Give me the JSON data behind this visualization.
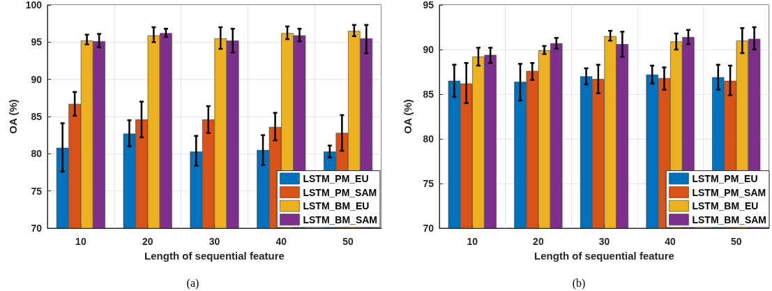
{
  "chart_data": [
    {
      "type": "bar",
      "categories": [
        "10",
        "20",
        "30",
        "40",
        "50"
      ],
      "xlabel": "Length of sequential feature",
      "ylabel": "OA (%)",
      "ylim": [
        70,
        100
      ],
      "yticks": [
        70,
        75,
        80,
        85,
        90,
        95,
        100
      ],
      "grid": true,
      "legend": "bottom right",
      "annotations": [
        "(a)"
      ],
      "series": [
        {
          "name": "LSTM_PM_EU",
          "color": "#0072bd",
          "values": [
            80.8,
            82.7,
            80.3,
            80.5,
            80.3
          ],
          "errors": [
            [
              77.6,
              84.1
            ],
            [
              81.0,
              84.5
            ],
            [
              78.4,
              82.4
            ],
            [
              78.5,
              82.5
            ],
            [
              79.5,
              81.1
            ]
          ]
        },
        {
          "name": "LSTM_PM_SAM",
          "color": "#d95319",
          "values": [
            86.7,
            84.6,
            84.6,
            83.6,
            82.8
          ],
          "errors": [
            [
              85.1,
              88.3
            ],
            [
              82.2,
              87.0
            ],
            [
              82.8,
              86.4
            ],
            [
              81.8,
              85.5
            ],
            [
              80.4,
              85.2
            ]
          ]
        },
        {
          "name": "LSTM_BM_EU",
          "color": "#edb120",
          "values": [
            95.2,
            95.9,
            95.5,
            96.2,
            96.5
          ],
          "errors": [
            [
              94.7,
              96.0
            ],
            [
              95.0,
              97.0
            ],
            [
              94.1,
              97.0
            ],
            [
              95.4,
              97.1
            ],
            [
              95.8,
              97.3
            ]
          ]
        },
        {
          "name": "LSTM_BM_SAM",
          "color": "#7e2f8e",
          "values": [
            95.1,
            96.2,
            95.2,
            95.9,
            95.5
          ],
          "errors": [
            [
              94.3,
              96.1
            ],
            [
              95.7,
              96.8
            ],
            [
              93.6,
              96.8
            ],
            [
              95.1,
              96.8
            ],
            [
              93.5,
              97.3
            ]
          ]
        }
      ]
    },
    {
      "type": "bar",
      "categories": [
        "10",
        "20",
        "30",
        "40",
        "50"
      ],
      "xlabel": "Length of sequential feature",
      "ylabel": "OA (%)",
      "ylim": [
        70,
        95
      ],
      "yticks": [
        70,
        75,
        80,
        85,
        90,
        95
      ],
      "grid": true,
      "legend": "bottom right",
      "annotations": [
        "(b)"
      ],
      "series": [
        {
          "name": "LSTM_PM_EU",
          "color": "#0072bd",
          "values": [
            86.5,
            86.4,
            87.0,
            87.2,
            86.9
          ],
          "errors": [
            [
              84.7,
              88.3
            ],
            [
              84.3,
              88.4
            ],
            [
              86.1,
              87.9
            ],
            [
              86.2,
              88.2
            ],
            [
              85.5,
              88.3
            ]
          ]
        },
        {
          "name": "LSTM_PM_SAM",
          "color": "#d95319",
          "values": [
            86.2,
            87.6,
            86.7,
            86.8,
            86.5
          ],
          "errors": [
            [
              84.0,
              88.5
            ],
            [
              86.6,
              88.5
            ],
            [
              85.1,
              88.3
            ],
            [
              85.5,
              88.0
            ],
            [
              84.9,
              88.2
            ]
          ]
        },
        {
          "name": "LSTM_BM_EU",
          "color": "#edb120",
          "values": [
            89.2,
            89.9,
            91.5,
            90.9,
            91.0
          ],
          "errors": [
            [
              88.2,
              90.2
            ],
            [
              89.5,
              90.4
            ],
            [
              91.0,
              92.1
            ],
            [
              90.0,
              91.8
            ],
            [
              89.6,
              92.4
            ]
          ]
        },
        {
          "name": "LSTM_BM_SAM",
          "color": "#7e2f8e",
          "values": [
            89.4,
            90.7,
            90.6,
            91.4,
            91.2
          ],
          "errors": [
            [
              88.5,
              90.2
            ],
            [
              90.1,
              91.3
            ],
            [
              89.2,
              92.0
            ],
            [
              90.6,
              92.2
            ],
            [
              90.0,
              92.5
            ]
          ]
        }
      ]
    }
  ]
}
